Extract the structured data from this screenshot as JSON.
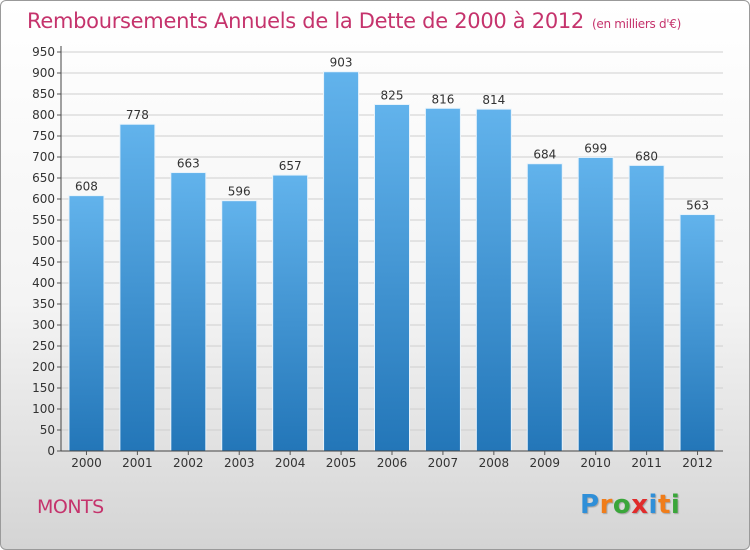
{
  "header": {
    "title": "Remboursements Annuels de la Dette de 2000 à 2012",
    "unit": "(en milliers d'€)"
  },
  "footer": {
    "commune": "MONTS",
    "logo_letters": [
      "P",
      "r",
      "o",
      "x",
      "i",
      "t",
      "i"
    ],
    "logo_colors": [
      "#2f8fd8",
      "#f07d1a",
      "#3aa63a",
      "#e02b2b",
      "#2f8fd8",
      "#f07d1a",
      "#3aa63a"
    ]
  },
  "colors": {
    "bar_top": "#62b3ec",
    "bar_bottom": "#2376b8",
    "title": "#c5336c",
    "grid": "#cfcfcf"
  },
  "chart_data": {
    "type": "bar",
    "title": "Remboursements Annuels de la Dette de 2000 à 2012",
    "xlabel": "",
    "ylabel": "",
    "categories": [
      "2000",
      "2001",
      "2002",
      "2003",
      "2004",
      "2005",
      "2006",
      "2007",
      "2008",
      "2009",
      "2010",
      "2011",
      "2012"
    ],
    "values": [
      608,
      778,
      663,
      596,
      657,
      903,
      825,
      816,
      814,
      684,
      699,
      680,
      563
    ],
    "ylim": [
      0,
      950
    ],
    "ytick_step": 50,
    "grid": true,
    "legend": "none"
  }
}
